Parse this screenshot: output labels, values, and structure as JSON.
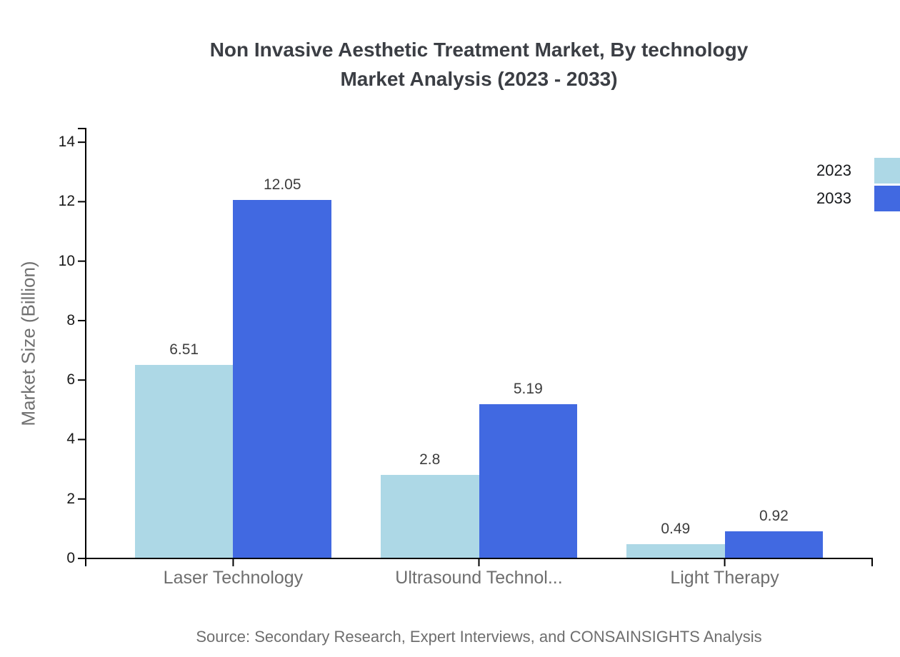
{
  "chart_data": {
    "type": "bar",
    "title": "Non Invasive Aesthetic Treatment Market, By technology Market Analysis (2023 - 2033)",
    "title_lines": [
      "Non Invasive Aesthetic Treatment Market, By technology",
      "Market Analysis (2023 - 2033)"
    ],
    "categories": [
      "Laser Technology",
      "Ultrasound Technol...",
      "Light Therapy"
    ],
    "series": [
      {
        "name": "2023",
        "color": "#ADD8E6",
        "values": [
          6.51,
          2.8,
          0.49
        ]
      },
      {
        "name": "2033",
        "color": "#4169E1",
        "values": [
          12.05,
          5.19,
          0.92
        ]
      }
    ],
    "xlabel": "",
    "ylabel": "Market Size (Billion)",
    "ylim": [
      0,
      14.46
    ],
    "yticks": [
      0,
      2,
      4,
      6,
      8,
      10,
      12,
      14
    ],
    "grid": false,
    "legend_position": "top-right",
    "value_labels_shown": true,
    "source": "Source: Secondary Research, Expert Interviews, and CONSAINSIGHTS Analysis"
  },
  "colors": {
    "background": "#ffffff",
    "axis": "#000000",
    "title_text": "#3b3e44",
    "tick_label": "#1a1a1a",
    "category_label": "#6e6e6e",
    "value_label": "#3d3d3d",
    "muted_text": "#6e6e6e",
    "series_2023": "#ADD8E6",
    "series_2033": "#4169E1"
  }
}
